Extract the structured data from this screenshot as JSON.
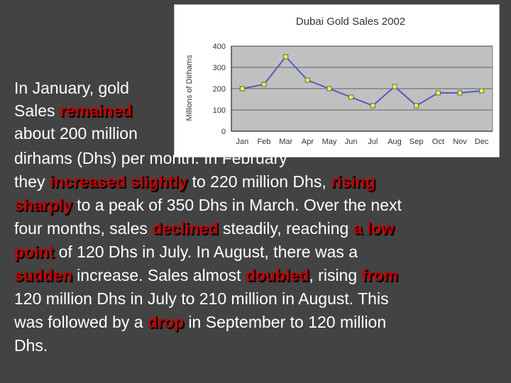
{
  "colors": {
    "background": "#434343",
    "text": "#ffffff",
    "highlight": "#c00000",
    "plot_area": "#c0c0c0",
    "line": "#4f5fb0",
    "marker_fill": "#ffff00",
    "marker_stroke": "#4f5fb0"
  },
  "chart_data": {
    "type": "line",
    "title": "Dubai Gold Sales 2002",
    "xlabel": "",
    "ylabel": "Millions of Dirhams",
    "categories": [
      "Jan",
      "Feb",
      "Mar",
      "Apr",
      "May",
      "Jun",
      "Jul",
      "Aug",
      "Sep",
      "Oct",
      "Nov",
      "Dec"
    ],
    "series": [
      {
        "values": [
          200,
          220,
          350,
          240,
          200,
          160,
          120,
          210,
          120,
          180,
          180,
          190
        ]
      }
    ],
    "ylim": [
      0,
      400
    ],
    "yticks": [
      0,
      100,
      200,
      300,
      400
    ],
    "grid": true,
    "legend": "none"
  },
  "paragraph": {
    "lines": [
      [
        {
          "text": "In January, gold"
        }
      ],
      [
        {
          "text": "Sales "
        },
        {
          "text": "remained",
          "highlight": true
        }
      ],
      [
        {
          "text": "about 200 million"
        }
      ],
      [
        {
          "text": "dirhams (Dhs) per month. In February"
        }
      ],
      [
        {
          "text": "they "
        },
        {
          "text": "increased slightly",
          "highlight": true
        },
        {
          "text": " to 220 million Dhs, "
        },
        {
          "text": "rising",
          "highlight": true
        }
      ],
      [
        {
          "text": "sharply",
          "highlight": true
        },
        {
          "text": " to a peak of 350 Dhs in March. Over the next"
        }
      ],
      [
        {
          "text": "four months, sales "
        },
        {
          "text": "declined",
          "highlight": true
        },
        {
          "text": " steadily, reaching "
        },
        {
          "text": "a low",
          "highlight": true
        }
      ],
      [
        {
          "text": "point",
          "highlight": true
        },
        {
          "text": " of 120 Dhs in July.  In August, there was a"
        }
      ],
      [
        {
          "text": "sudden",
          "highlight": true
        },
        {
          "text": " increase. Sales almost "
        },
        {
          "text": "doubled",
          "highlight": true
        },
        {
          "text": ", rising "
        },
        {
          "text": "from",
          "highlight": true
        }
      ],
      [
        {
          "text": "120 million Dhs in July to 210 million in August.  This"
        }
      ],
      [
        {
          "text": "was followed by a "
        },
        {
          "text": "drop",
          "highlight": true
        },
        {
          "text": " in September to 120 million"
        }
      ],
      [
        {
          "text": "Dhs."
        }
      ]
    ]
  }
}
